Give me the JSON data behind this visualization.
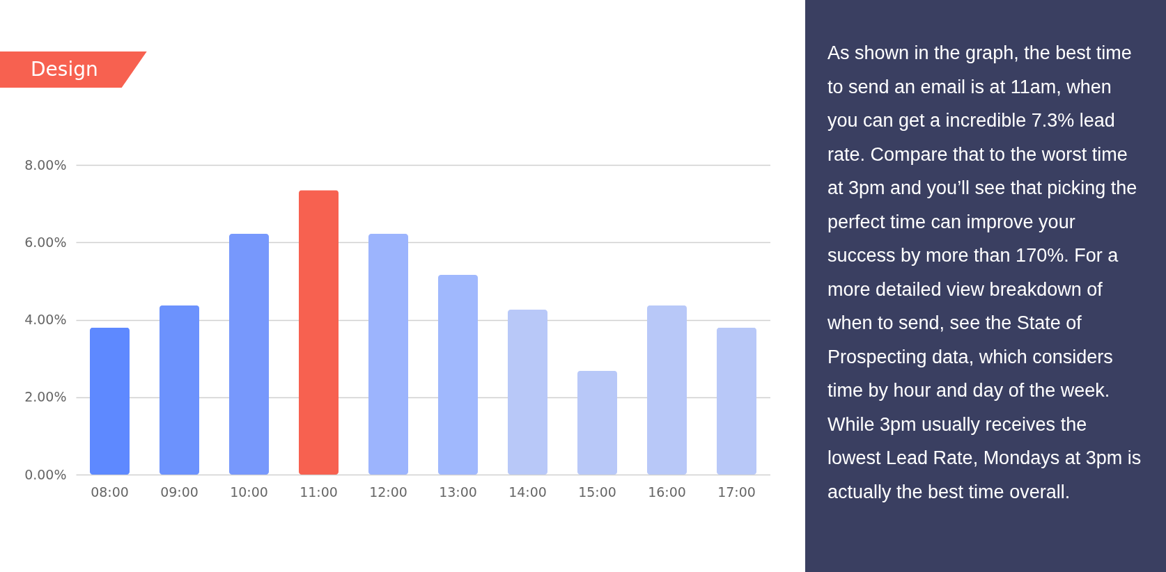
{
  "chart_data": {
    "type": "bar",
    "title": "Design",
    "categories": [
      "08:00",
      "09:00",
      "10:00",
      "11:00",
      "12:00",
      "13:00",
      "14:00",
      "15:00",
      "16:00",
      "17:00"
    ],
    "values": [
      3.8,
      4.37,
      6.22,
      7.35,
      6.22,
      5.16,
      4.26,
      2.68,
      4.37,
      3.8
    ],
    "colors": [
      "#5e89ff",
      "#6c92fd",
      "#7798fc",
      "#f76150",
      "#9cb4fd",
      "#a0b8fd",
      "#b8c8f8",
      "#b8c8f8",
      "#b8c8f8",
      "#b8c8f8"
    ],
    "ylim": [
      0,
      8
    ],
    "yticks": [
      {
        "value": 0,
        "label": "0.00%"
      },
      {
        "value": 2,
        "label": "2.00%"
      },
      {
        "value": 4,
        "label": "4.00%"
      },
      {
        "value": 6,
        "label": "6.00%"
      },
      {
        "value": 8,
        "label": "8.00%"
      }
    ],
    "grid": "y",
    "annotations": [
      "As shown in the graph, the best time to send an email is at 11am, when you can get a incredible 7.3% lead rate. Compare that to the worst time at 3pm and you’ll see that picking the perfect time can improve your success by more than 170%. For a more detailed view breakdown of when to send, see the State of Prospecting data, which considers time by hour and day of the week. While 3pm usually receives the lowest Lead Rate, Mondays at 3pm is actually the best time overall."
    ]
  }
}
